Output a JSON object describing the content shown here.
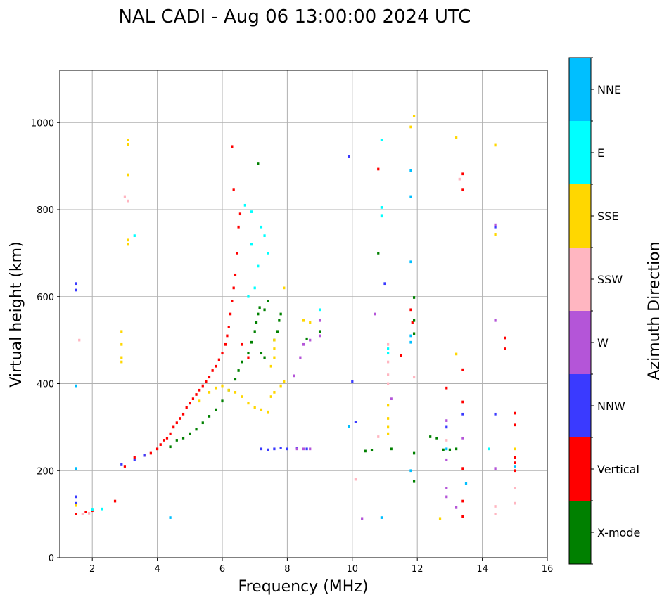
{
  "chart_data": {
    "type": "scatter",
    "title": "NAL CADI - Aug 06 13:00:00 2024 UTC",
    "xlabel": "Frequency (MHz)",
    "ylabel": "Virtual height (km)",
    "xlim": [
      1,
      16
    ],
    "ylim": [
      0,
      1120
    ],
    "xticks": [
      2,
      4,
      6,
      8,
      10,
      12,
      14,
      16
    ],
    "yticks": [
      0,
      200,
      400,
      600,
      800,
      1000
    ],
    "grid": true,
    "cell_size_mhz": 0.07,
    "cell_size_km": 6,
    "colorbar": {
      "label": "Azimuth Direction",
      "categories": [
        {
          "name": "X-mode",
          "color": "#008000"
        },
        {
          "name": "Vertical",
          "color": "#ff0000"
        },
        {
          "name": "NNW",
          "color": "#3a3aff"
        },
        {
          "name": "W",
          "color": "#b455d8"
        },
        {
          "name": "SSW",
          "color": "#ffb6c1"
        },
        {
          "name": "SSE",
          "color": "#ffd700"
        },
        {
          "name": "E",
          "color": "#00ffff"
        },
        {
          "name": "NNE",
          "color": "#00bfff"
        }
      ]
    },
    "series": [
      {
        "name": "Vertical",
        "points": [
          [
            1.5,
            100
          ],
          [
            1.8,
            105
          ],
          [
            2.0,
            108
          ],
          [
            2.7,
            130
          ],
          [
            3.0,
            210
          ],
          [
            3.3,
            230
          ],
          [
            3.6,
            235
          ],
          [
            3.8,
            240
          ],
          [
            4.0,
            250
          ],
          [
            4.1,
            260
          ],
          [
            4.2,
            270
          ],
          [
            4.3,
            275
          ],
          [
            4.4,
            285
          ],
          [
            4.5,
            300
          ],
          [
            4.6,
            310
          ],
          [
            4.7,
            320
          ],
          [
            4.8,
            330
          ],
          [
            4.9,
            345
          ],
          [
            5.0,
            355
          ],
          [
            5.1,
            365
          ],
          [
            5.2,
            375
          ],
          [
            5.3,
            385
          ],
          [
            5.4,
            395
          ],
          [
            5.5,
            405
          ],
          [
            5.6,
            415
          ],
          [
            5.7,
            430
          ],
          [
            5.8,
            440
          ],
          [
            5.9,
            455
          ],
          [
            6.0,
            470
          ],
          [
            6.1,
            490
          ],
          [
            6.15,
            510
          ],
          [
            6.2,
            530
          ],
          [
            6.25,
            560
          ],
          [
            6.3,
            590
          ],
          [
            6.35,
            620
          ],
          [
            6.4,
            650
          ],
          [
            6.45,
            700
          ],
          [
            6.5,
            760
          ],
          [
            6.55,
            790
          ],
          [
            6.35,
            845
          ],
          [
            6.3,
            945
          ],
          [
            6.6,
            490
          ],
          [
            6.8,
            460
          ],
          [
            10.8,
            893
          ],
          [
            11.5,
            465
          ],
          [
            11.8,
            570
          ],
          [
            11.85,
            540
          ],
          [
            13.4,
            882
          ],
          [
            13.4,
            845
          ],
          [
            13.4,
            432
          ],
          [
            13.4,
            358
          ],
          [
            13.4,
            205
          ],
          [
            13.4,
            130
          ],
          [
            13.4,
            95
          ],
          [
            12.9,
            390
          ],
          [
            15.0,
            332
          ],
          [
            15.0,
            305
          ],
          [
            15.0,
            230
          ],
          [
            15.0,
            218
          ],
          [
            15.0,
            200
          ],
          [
            14.7,
            505
          ],
          [
            14.7,
            480
          ]
        ]
      },
      {
        "name": "X-mode",
        "points": [
          [
            4.4,
            255
          ],
          [
            4.6,
            270
          ],
          [
            4.8,
            275
          ],
          [
            5.0,
            285
          ],
          [
            5.2,
            295
          ],
          [
            5.4,
            310
          ],
          [
            5.6,
            325
          ],
          [
            5.8,
            340
          ],
          [
            6.0,
            360
          ],
          [
            6.2,
            385
          ],
          [
            6.4,
            410
          ],
          [
            6.5,
            430
          ],
          [
            6.6,
            450
          ],
          [
            6.8,
            470
          ],
          [
            6.9,
            495
          ],
          [
            7.0,
            520
          ],
          [
            7.05,
            540
          ],
          [
            7.1,
            560
          ],
          [
            7.15,
            575
          ],
          [
            7.6,
            500
          ],
          [
            7.7,
            520
          ],
          [
            7.75,
            545
          ],
          [
            7.8,
            560
          ],
          [
            7.2,
            470
          ],
          [
            7.3,
            460
          ],
          [
            7.1,
            905
          ],
          [
            7.3,
            570
          ],
          [
            7.4,
            590
          ],
          [
            11.9,
            598
          ],
          [
            11.9,
            545
          ],
          [
            11.9,
            515
          ],
          [
            11.9,
            240
          ],
          [
            11.9,
            175
          ],
          [
            12.4,
            278
          ],
          [
            12.6,
            275
          ],
          [
            12.8,
            248
          ],
          [
            13.0,
            248
          ],
          [
            13.2,
            250
          ],
          [
            10.8,
            700
          ],
          [
            10.4,
            245
          ],
          [
            10.6,
            247
          ],
          [
            11.2,
            250
          ],
          [
            8.6,
            503
          ],
          [
            9.0,
            520
          ]
        ]
      },
      {
        "name": "NNW",
        "points": [
          [
            1.5,
            630
          ],
          [
            1.5,
            615
          ],
          [
            1.5,
            140
          ],
          [
            1.5,
            125
          ],
          [
            2.9,
            215
          ],
          [
            3.3,
            225
          ],
          [
            3.6,
            235
          ],
          [
            7.2,
            250
          ],
          [
            7.4,
            248
          ],
          [
            7.6,
            250
          ],
          [
            7.8,
            252
          ],
          [
            8.0,
            250
          ],
          [
            8.3,
            252
          ],
          [
            8.6,
            250
          ],
          [
            9.9,
            922
          ],
          [
            10.0,
            405
          ],
          [
            10.1,
            312
          ],
          [
            11.0,
            630
          ],
          [
            12.9,
            300
          ],
          [
            13.4,
            330
          ],
          [
            14.4,
            330
          ],
          [
            14.4,
            760
          ]
        ]
      },
      {
        "name": "W",
        "points": [
          [
            8.3,
            250
          ],
          [
            8.5,
            250
          ],
          [
            8.7,
            250
          ],
          [
            8.7,
            500
          ],
          [
            8.5,
            490
          ],
          [
            9.0,
            510
          ],
          [
            9.0,
            545
          ],
          [
            8.2,
            418
          ],
          [
            8.4,
            460
          ],
          [
            10.7,
            560
          ],
          [
            11.2,
            365
          ],
          [
            12.9,
            315
          ],
          [
            12.9,
            160
          ],
          [
            12.9,
            140
          ],
          [
            12.9,
            225
          ],
          [
            13.4,
            275
          ],
          [
            13.2,
            115
          ],
          [
            14.4,
            545
          ],
          [
            14.4,
            205
          ],
          [
            14.4,
            765
          ],
          [
            10.3,
            90
          ]
        ]
      },
      {
        "name": "SSW",
        "points": [
          [
            1.7,
            100
          ],
          [
            1.9,
            102
          ],
          [
            1.6,
            500
          ],
          [
            3.0,
            830
          ],
          [
            3.1,
            820
          ],
          [
            11.1,
            490
          ],
          [
            11.1,
            450
          ],
          [
            11.1,
            420
          ],
          [
            11.1,
            400
          ],
          [
            12.9,
            270
          ],
          [
            13.3,
            870
          ],
          [
            14.4,
            118
          ],
          [
            14.4,
            100
          ],
          [
            15.0,
            160
          ],
          [
            15.0,
            125
          ],
          [
            10.1,
            180
          ],
          [
            10.8,
            278
          ],
          [
            11.9,
            415
          ]
        ]
      },
      {
        "name": "SSE",
        "points": [
          [
            1.5,
            120
          ],
          [
            3.1,
            960
          ],
          [
            3.1,
            950
          ],
          [
            3.1,
            880
          ],
          [
            3.1,
            730
          ],
          [
            3.1,
            720
          ],
          [
            2.9,
            520
          ],
          [
            2.9,
            490
          ],
          [
            2.9,
            460
          ],
          [
            2.9,
            450
          ],
          [
            5.3,
            360
          ],
          [
            5.6,
            380
          ],
          [
            5.8,
            390
          ],
          [
            6.0,
            395
          ],
          [
            6.2,
            385
          ],
          [
            6.4,
            380
          ],
          [
            6.6,
            370
          ],
          [
            6.8,
            355
          ],
          [
            7.0,
            345
          ],
          [
            7.2,
            340
          ],
          [
            7.4,
            335
          ],
          [
            7.5,
            370
          ],
          [
            7.6,
            380
          ],
          [
            7.8,
            395
          ],
          [
            7.9,
            405
          ],
          [
            7.5,
            440
          ],
          [
            7.6,
            460
          ],
          [
            7.6,
            480
          ],
          [
            7.6,
            500
          ],
          [
            7.9,
            620
          ],
          [
            8.5,
            545
          ],
          [
            8.7,
            540
          ],
          [
            11.1,
            350
          ],
          [
            11.1,
            320
          ],
          [
            11.1,
            300
          ],
          [
            11.1,
            285
          ],
          [
            11.8,
            990
          ],
          [
            11.9,
            1015
          ],
          [
            13.2,
            965
          ],
          [
            13.2,
            468
          ],
          [
            12.7,
            90
          ],
          [
            14.4,
            948
          ],
          [
            14.4,
            742
          ],
          [
            15.0,
            250
          ]
        ]
      },
      {
        "name": "E",
        "points": [
          [
            6.7,
            810
          ],
          [
            6.9,
            795
          ],
          [
            7.2,
            760
          ],
          [
            7.3,
            740
          ],
          [
            7.4,
            700
          ],
          [
            6.9,
            720
          ],
          [
            7.1,
            670
          ],
          [
            7.0,
            620
          ],
          [
            6.8,
            600
          ],
          [
            10.9,
            960
          ],
          [
            10.9,
            805
          ],
          [
            10.9,
            785
          ],
          [
            11.1,
            480
          ],
          [
            11.1,
            470
          ],
          [
            9.0,
            570
          ],
          [
            14.2,
            250
          ],
          [
            2.0,
            110
          ],
          [
            2.3,
            112
          ],
          [
            3.3,
            740
          ]
        ]
      },
      {
        "name": "NNE",
        "points": [
          [
            1.5,
            395
          ],
          [
            1.5,
            205
          ],
          [
            4.4,
            92
          ],
          [
            10.9,
            92
          ],
          [
            11.8,
            890
          ],
          [
            11.8,
            830
          ],
          [
            11.8,
            680
          ],
          [
            11.8,
            510
          ],
          [
            11.8,
            495
          ],
          [
            11.8,
            200
          ],
          [
            13.5,
            170
          ],
          [
            9.9,
            302
          ],
          [
            12.9,
            250
          ],
          [
            15.0,
            210
          ]
        ]
      }
    ]
  }
}
